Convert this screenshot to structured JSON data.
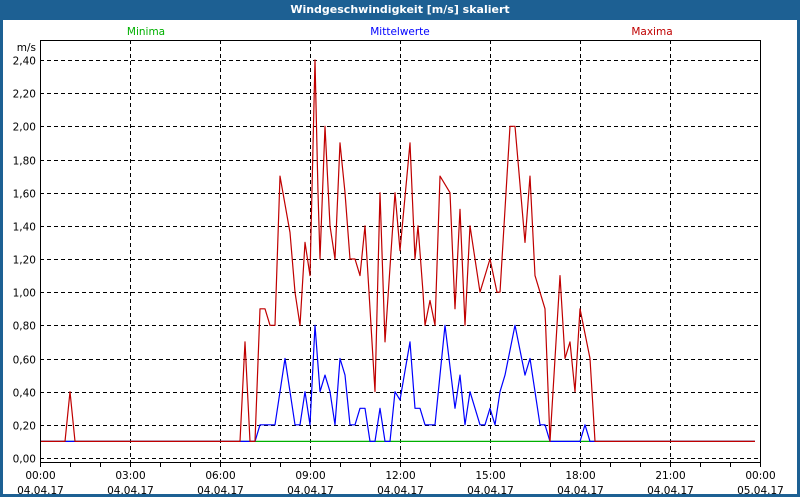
{
  "window": {
    "title": "Windgeschwindigkeit [m/s] skaliert"
  },
  "chart_data": {
    "type": "line",
    "title": "Windgeschwindigkeit [m/s] skaliert",
    "ylabel": "m/s",
    "ylim": [
      0,
      2.4
    ],
    "yticks": [
      "0,00",
      "0,20",
      "0,40",
      "0,60",
      "0,80",
      "1,00",
      "1,20",
      "1,40",
      "1,60",
      "1,80",
      "2,00",
      "2,20",
      "2,40"
    ],
    "xlim": [
      "04.04.17 00:00",
      "05.04.17 00:00"
    ],
    "xticks": [
      {
        "time": "00:00",
        "date": "04.04.17"
      },
      {
        "time": "03:00",
        "date": "04.04.17"
      },
      {
        "time": "06:00",
        "date": "04.04.17"
      },
      {
        "time": "09:00",
        "date": "04.04.17"
      },
      {
        "time": "12:00",
        "date": "04.04.17"
      },
      {
        "time": "15:00",
        "date": "04.04.17"
      },
      {
        "time": "18:00",
        "date": "04.04.17"
      },
      {
        "time": "21:00",
        "date": "04.04.17"
      },
      {
        "time": "00:00",
        "date": "05.04.17"
      }
    ],
    "grid": true,
    "legend_placement": "top",
    "series": [
      {
        "name": "Minima",
        "color": "#00b000",
        "points": [
          [
            "00:00",
            0.1
          ],
          [
            "23:50",
            0.1
          ]
        ]
      },
      {
        "name": "Mittelwerte",
        "color": "#0000ff",
        "points": [
          [
            "00:00",
            0.1
          ],
          [
            "07:10",
            0.1
          ],
          [
            "07:20",
            0.2
          ],
          [
            "07:50",
            0.2
          ],
          [
            "08:10",
            0.6
          ],
          [
            "08:30",
            0.2
          ],
          [
            "08:40",
            0.2
          ],
          [
            "08:50",
            0.4
          ],
          [
            "09:00",
            0.2
          ],
          [
            "09:10",
            0.8
          ],
          [
            "09:20",
            0.4
          ],
          [
            "09:30",
            0.5
          ],
          [
            "09:40",
            0.4
          ],
          [
            "09:50",
            0.2
          ],
          [
            "10:00",
            0.6
          ],
          [
            "10:10",
            0.5
          ],
          [
            "10:20",
            0.2
          ],
          [
            "10:30",
            0.2
          ],
          [
            "10:40",
            0.3
          ],
          [
            "10:50",
            0.3
          ],
          [
            "11:00",
            0.1
          ],
          [
            "11:10",
            0.1
          ],
          [
            "11:20",
            0.3
          ],
          [
            "11:30",
            0.1
          ],
          [
            "11:40",
            0.1
          ],
          [
            "11:50",
            0.4
          ],
          [
            "12:00",
            0.35
          ],
          [
            "12:20",
            0.7
          ],
          [
            "12:30",
            0.3
          ],
          [
            "12:40",
            0.3
          ],
          [
            "12:50",
            0.2
          ],
          [
            "13:10",
            0.2
          ],
          [
            "13:30",
            0.8
          ],
          [
            "13:50",
            0.3
          ],
          [
            "14:00",
            0.5
          ],
          [
            "14:10",
            0.2
          ],
          [
            "14:20",
            0.4
          ],
          [
            "14:40",
            0.2
          ],
          [
            "14:50",
            0.2
          ],
          [
            "15:00",
            0.3
          ],
          [
            "15:10",
            0.2
          ],
          [
            "15:20",
            0.4
          ],
          [
            "15:30",
            0.5
          ],
          [
            "15:50",
            0.8
          ],
          [
            "16:10",
            0.5
          ],
          [
            "16:20",
            0.6
          ],
          [
            "16:40",
            0.2
          ],
          [
            "16:50",
            0.2
          ],
          [
            "17:00",
            0.1
          ],
          [
            "18:00",
            0.1
          ],
          [
            "18:10",
            0.2
          ],
          [
            "18:20",
            0.1
          ],
          [
            "23:50",
            0.1
          ]
        ]
      },
      {
        "name": "Maxima",
        "color": "#c00000",
        "points": [
          [
            "00:00",
            0.1
          ],
          [
            "00:50",
            0.1
          ],
          [
            "01:00",
            0.4
          ],
          [
            "01:10",
            0.1
          ],
          [
            "06:40",
            0.1
          ],
          [
            "06:50",
            0.7
          ],
          [
            "07:00",
            0.1
          ],
          [
            "07:10",
            0.1
          ],
          [
            "07:20",
            0.9
          ],
          [
            "07:30",
            0.9
          ],
          [
            "07:40",
            0.8
          ],
          [
            "07:50",
            0.8
          ],
          [
            "08:00",
            1.7
          ],
          [
            "08:20",
            1.36
          ],
          [
            "08:30",
            1.0
          ],
          [
            "08:40",
            0.8
          ],
          [
            "08:50",
            1.3
          ],
          [
            "09:00",
            1.1
          ],
          [
            "09:10",
            2.4
          ],
          [
            "09:16",
            1.6
          ],
          [
            "09:20",
            1.2
          ],
          [
            "09:30",
            2.0
          ],
          [
            "09:40",
            1.4
          ],
          [
            "09:50",
            1.2
          ],
          [
            "10:00",
            1.9
          ],
          [
            "10:10",
            1.6
          ],
          [
            "10:20",
            1.2
          ],
          [
            "10:30",
            1.2
          ],
          [
            "10:40",
            1.1
          ],
          [
            "10:50",
            1.4
          ],
          [
            "11:10",
            0.4
          ],
          [
            "11:20",
            1.6
          ],
          [
            "11:30",
            0.7
          ],
          [
            "11:50",
            1.6
          ],
          [
            "12:00",
            1.25
          ],
          [
            "12:20",
            1.9
          ],
          [
            "12:30",
            1.2
          ],
          [
            "12:36",
            1.4
          ],
          [
            "12:46",
            1.0
          ],
          [
            "12:50",
            0.8
          ],
          [
            "13:00",
            0.95
          ],
          [
            "13:10",
            0.8
          ],
          [
            "13:20",
            1.7
          ],
          [
            "13:40",
            1.6
          ],
          [
            "13:50",
            0.9
          ],
          [
            "14:00",
            1.5
          ],
          [
            "14:10",
            0.8
          ],
          [
            "14:20",
            1.4
          ],
          [
            "14:40",
            1.0
          ],
          [
            "15:00",
            1.2
          ],
          [
            "15:14",
            1.0
          ],
          [
            "15:20",
            1.0
          ],
          [
            "15:40",
            2.0
          ],
          [
            "15:50",
            2.0
          ],
          [
            "16:10",
            1.3
          ],
          [
            "16:20",
            1.7
          ],
          [
            "16:30",
            1.1
          ],
          [
            "16:50",
            0.9
          ],
          [
            "17:00",
            0.1
          ],
          [
            "17:20",
            1.1
          ],
          [
            "17:30",
            0.6
          ],
          [
            "17:40",
            0.7
          ],
          [
            "17:50",
            0.4
          ],
          [
            "18:00",
            0.9
          ],
          [
            "18:20",
            0.6
          ],
          [
            "18:30",
            0.1
          ],
          [
            "23:50",
            0.1
          ]
        ]
      }
    ]
  }
}
